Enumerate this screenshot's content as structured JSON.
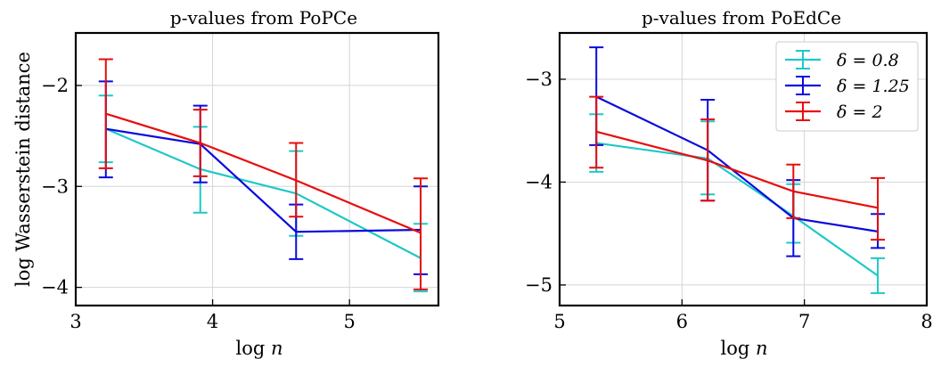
{
  "chart_data": [
    {
      "type": "line",
      "title": "p-values from PoPCe",
      "xlabel": "log n",
      "ylabel": "log Wasserstein distance",
      "xlim": [
        3.0,
        5.65
      ],
      "ylim": [
        -4.18,
        -1.48
      ],
      "xticks": [
        3,
        4,
        5
      ],
      "yticks": [
        -4,
        -3,
        -2
      ],
      "xtick_labels": [
        "3",
        "4",
        "5"
      ],
      "ytick_labels": [
        "−4",
        "−3",
        "−2"
      ],
      "grid": true,
      "legend": false,
      "x": [
        3.22,
        3.91,
        4.61,
        5.52
      ],
      "series": [
        {
          "name": "δ = 0.8",
          "color": "#1ec8c8",
          "values": [
            -2.43,
            -2.83,
            -3.07,
            -3.71
          ],
          "err_low": [
            -2.76,
            -3.26,
            -3.49,
            -4.04
          ],
          "err_high": [
            -2.1,
            -2.41,
            -2.65,
            -3.37
          ]
        },
        {
          "name": "δ = 1.25",
          "color": "#0a0ade",
          "values": [
            -2.43,
            -2.58,
            -3.45,
            -3.43
          ],
          "err_low": [
            -2.91,
            -2.96,
            -3.72,
            -3.87
          ],
          "err_high": [
            -1.96,
            -2.2,
            -3.18,
            -3.0
          ]
        },
        {
          "name": "δ = 2",
          "color": "#e80c0c",
          "values": [
            -2.28,
            -2.57,
            -2.94,
            -3.46
          ],
          "err_low": [
            -2.82,
            -2.9,
            -3.3,
            -4.02
          ],
          "err_high": [
            -1.74,
            -2.24,
            -2.57,
            -2.92
          ]
        }
      ]
    },
    {
      "type": "line",
      "title": "p-values from PoEdCe",
      "xlabel": "log n",
      "ylabel": "",
      "xlim": [
        5.0,
        8.0
      ],
      "ylim": [
        -5.2,
        -2.55
      ],
      "xticks": [
        5,
        6,
        7,
        8
      ],
      "yticks": [
        -5,
        -4,
        -3
      ],
      "xtick_labels": [
        "5",
        "6",
        "7",
        "8"
      ],
      "ytick_labels": [
        "−5",
        "−4",
        "−3"
      ],
      "grid": true,
      "legend": true,
      "legend_position": "top-right",
      "x": [
        5.3,
        6.21,
        6.91,
        7.6
      ],
      "series": [
        {
          "name": "δ = 0.8",
          "color": "#1ec8c8",
          "values": [
            -3.62,
            -3.77,
            -4.33,
            -4.91
          ],
          "err_low": [
            -3.9,
            -4.12,
            -4.59,
            -5.08
          ],
          "err_high": [
            -3.34,
            -3.41,
            -4.02,
            -4.74
          ]
        },
        {
          "name": "δ = 1.25",
          "color": "#0a0ade",
          "values": [
            -3.17,
            -3.69,
            -4.35,
            -4.48
          ],
          "err_low": [
            -3.64,
            -4.18,
            -4.72,
            -4.64
          ],
          "err_high": [
            -2.69,
            -3.2,
            -3.98,
            -4.31
          ]
        },
        {
          "name": "δ = 2",
          "color": "#e80c0c",
          "values": [
            -3.51,
            -3.79,
            -4.09,
            -4.25
          ],
          "err_low": [
            -3.86,
            -4.18,
            -4.35,
            -4.56
          ],
          "err_high": [
            -3.17,
            -3.39,
            -3.83,
            -3.96
          ]
        }
      ]
    }
  ]
}
